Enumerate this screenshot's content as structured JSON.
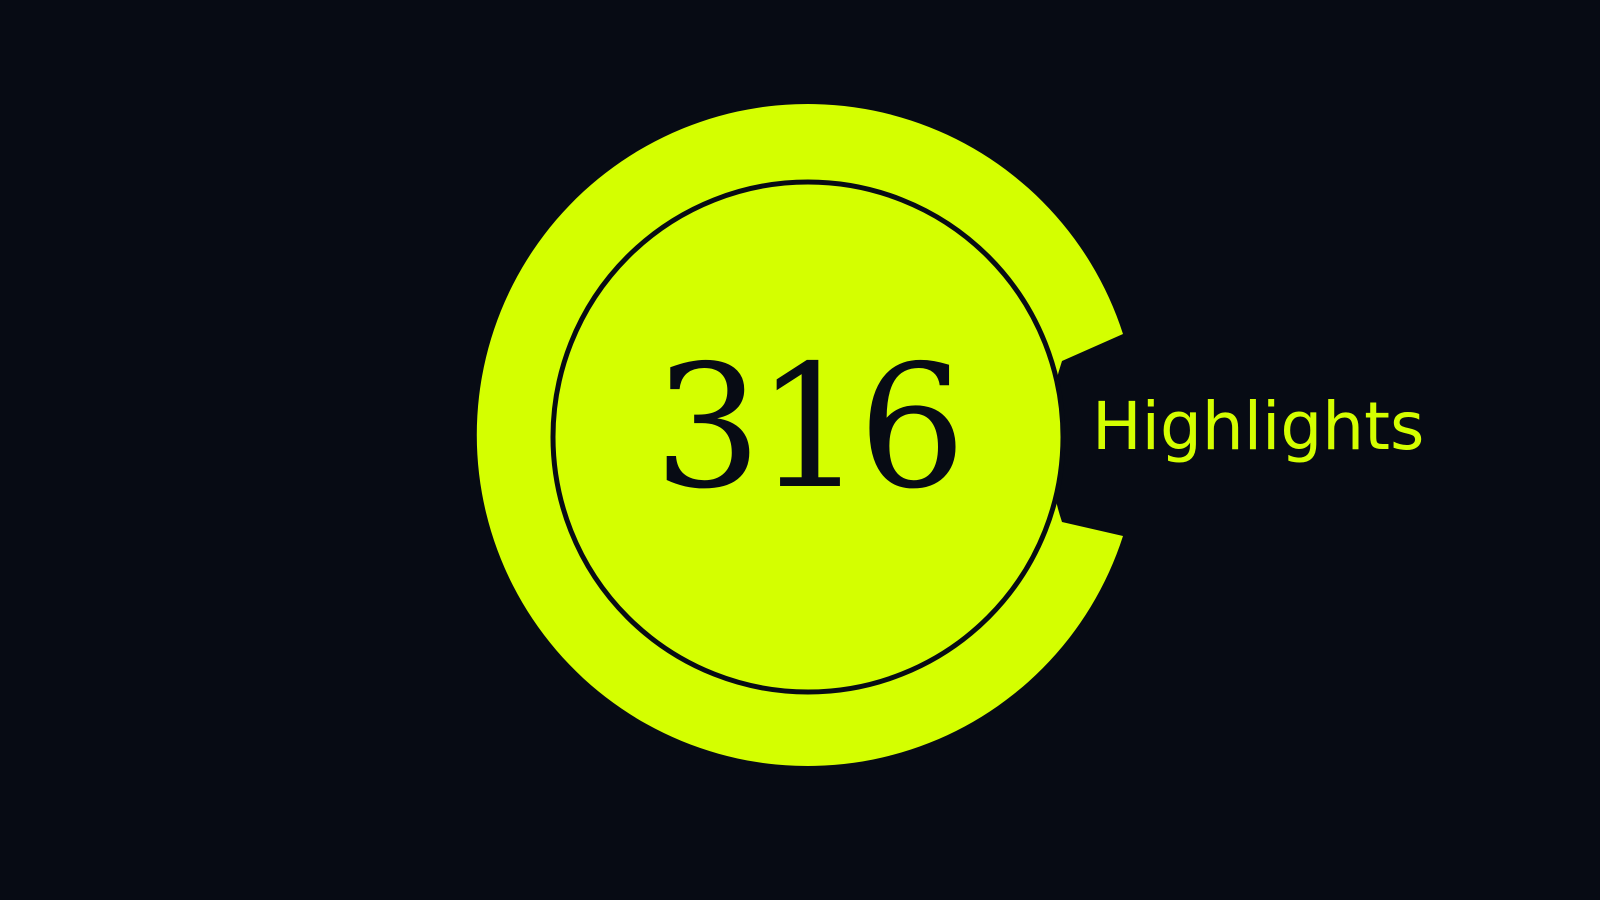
{
  "badge": {
    "count": "316",
    "label": "Highlights"
  },
  "colors": {
    "background": "#070b14",
    "accent": "#d4ff00",
    "ink": "#070b14"
  }
}
